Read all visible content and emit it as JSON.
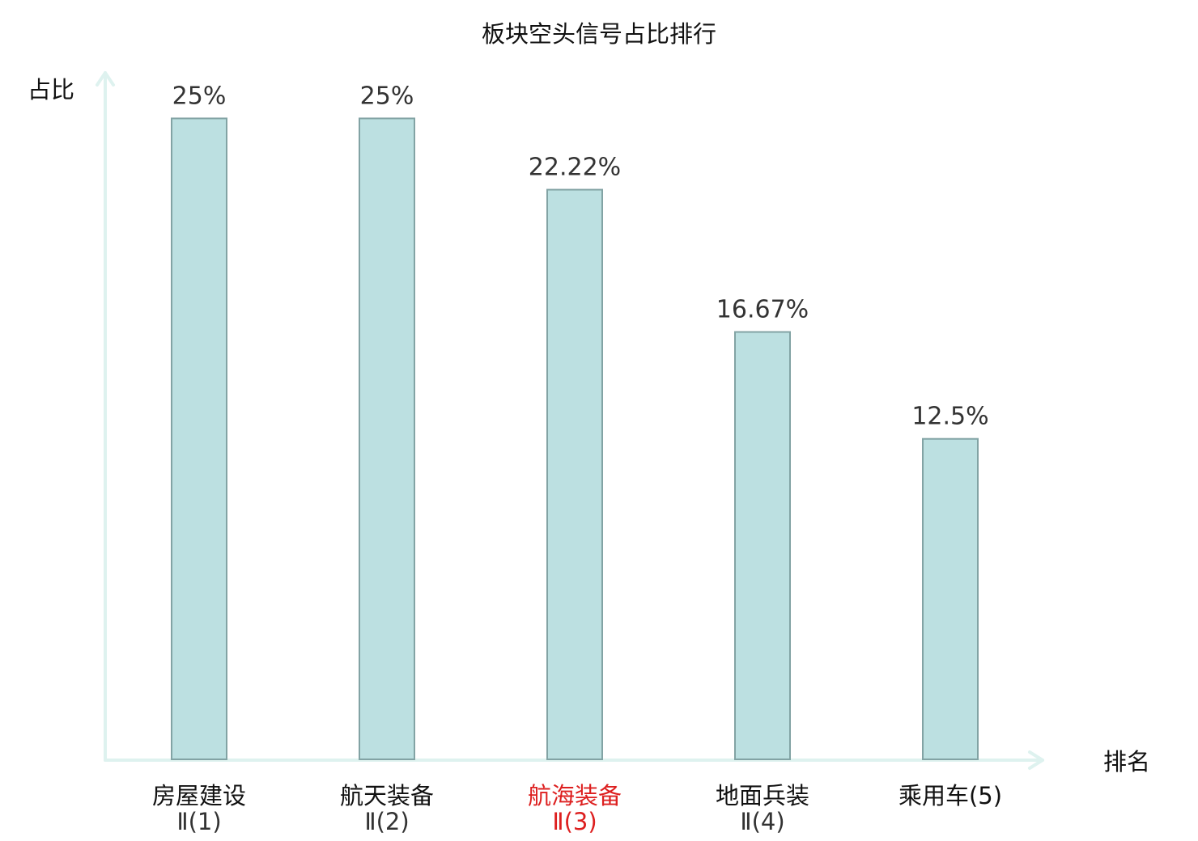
{
  "chart_data": {
    "type": "bar",
    "title": "板块空头信号占比排行",
    "ylabel": "占比",
    "xlabel": "排名",
    "ylim": [
      0,
      26.78
    ],
    "grid": false,
    "legend": "none",
    "highlight_index": 2,
    "categories": [
      {
        "line1": "房屋建设",
        "line2": "Ⅱ(1)"
      },
      {
        "line1": "航天装备",
        "line2": "Ⅱ(2)"
      },
      {
        "line1": "航海装备",
        "line2": "Ⅱ(3)"
      },
      {
        "line1": "地面兵装",
        "line2": "Ⅱ(4)"
      },
      {
        "line1": "乘用车(5)",
        "line2": ""
      }
    ],
    "values": [
      25,
      25,
      22.22,
      16.67,
      12.5
    ],
    "value_labels": [
      "25%",
      "25%",
      "22.22%",
      "16.67%",
      "12.5%"
    ]
  },
  "colors": {
    "bar_fill": "#bce0e1",
    "bar_stroke": "#82a3a4",
    "axis": "#def2ef",
    "highlight_text": "#dd1f1f"
  }
}
